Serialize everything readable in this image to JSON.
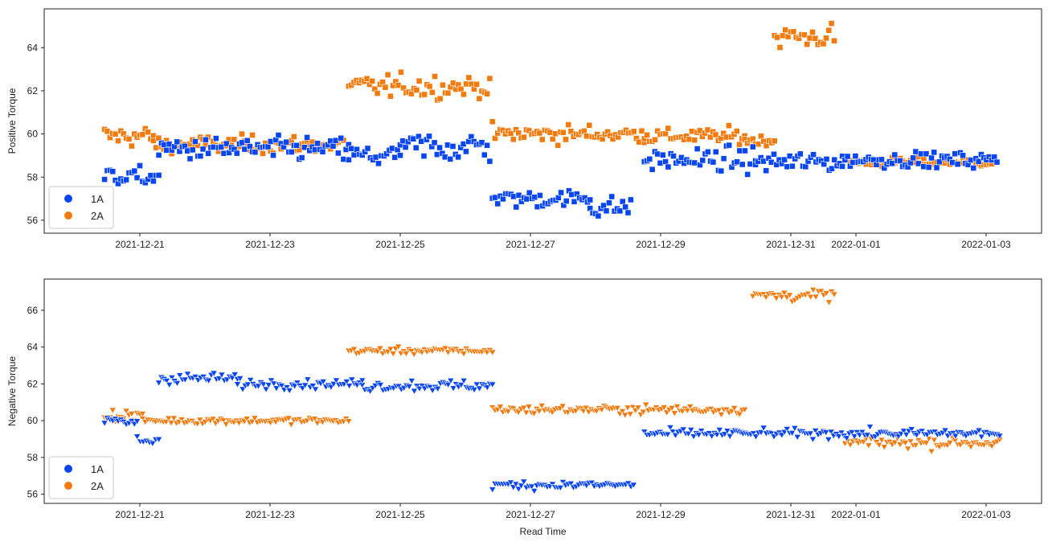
{
  "colors": {
    "1A": "#0a46f0",
    "2A": "#f27b0f",
    "frame": "#222222",
    "legend_border": "#cccccc"
  },
  "chart_data": [
    {
      "type": "scatter",
      "marker": "square",
      "xlabel": "",
      "ylabel": "Positive Torque",
      "x_type": "date",
      "xlim": [
        "2020-12-19T12:00",
        "2022-01-03T19:00"
      ],
      "x_ticks": [
        "2021-12-21",
        "2021-12-23",
        "2021-12-25",
        "2021-12-27",
        "2021-12-29",
        "2021-12-31",
        "2022-01-01",
        "2022-01-03"
      ],
      "ylim": [
        55.4,
        65.8
      ],
      "y_ticks": [
        56,
        58,
        60,
        62,
        64
      ],
      "legend": {
        "placement": "lower-left",
        "entries": [
          "1A",
          "2A"
        ]
      },
      "segments": {
        "1A": [
          {
            "start": "2021-12-20T11:00",
            "end": "2021-12-21T07:00",
            "base": 58.0,
            "noise": 0.35
          },
          {
            "start": "2021-12-21T07:00",
            "end": "2021-12-24T05:00",
            "base": 59.3,
            "noise": 0.45
          },
          {
            "start": "2021-12-24T05:00",
            "end": "2021-12-25T00:00",
            "base": 59.0,
            "noise": 0.45
          },
          {
            "start": "2021-12-25T00:00",
            "end": "2021-12-26T09:00",
            "base": 59.4,
            "noise": 0.6
          },
          {
            "start": "2021-12-26T10:00",
            "end": "2021-12-27T22:00",
            "base": 57.0,
            "noise": 0.35
          },
          {
            "start": "2021-12-27T22:00",
            "end": "2021-12-28T13:00",
            "base": 56.6,
            "noise": 0.4
          },
          {
            "start": "2021-12-28T18:00",
            "end": "2021-12-30T11:00",
            "base": 58.8,
            "noise": 0.45
          },
          {
            "start": "2021-12-30T11:00",
            "end": "2021-12-31T19:00",
            "base": 58.7,
            "noise": 0.4
          },
          {
            "start": "2021-12-31T19:00",
            "end": "2022-01-03T04:00",
            "base": 58.8,
            "noise": 0.3
          }
        ],
        "2A": [
          {
            "start": "2021-12-20T11:00",
            "end": "2021-12-21T05:00",
            "base": 59.9,
            "noise": 0.4
          },
          {
            "start": "2021-12-21T05:00",
            "end": "2021-12-24T05:00",
            "base": 59.5,
            "noise": 0.35
          },
          {
            "start": "2021-12-24T05:00",
            "end": "2021-12-26T09:00",
            "base": 62.2,
            "noise": 0.45
          },
          {
            "start": "2021-12-26T10:00",
            "end": "2021-12-28T18:00",
            "base": 60.0,
            "noise": 0.35
          },
          {
            "start": "2021-12-28T18:00",
            "end": "2021-12-30T07:00",
            "base": 59.9,
            "noise": 0.3
          },
          {
            "start": "2021-12-30T07:00",
            "end": "2021-12-30T18:00",
            "base": 59.7,
            "noise": 0.2
          },
          {
            "start": "2021-12-30T18:00",
            "end": "2021-12-31T16:00",
            "base": 64.5,
            "noise": 0.5
          },
          {
            "start": "2021-12-31T22:00",
            "end": "2022-01-03T04:00",
            "base": 58.7,
            "noise": 0.18
          }
        ]
      }
    },
    {
      "type": "scatter",
      "marker": "triangle-down",
      "xlabel": "Read Time",
      "ylabel": "Negative Torque",
      "x_type": "date",
      "xlim": [
        "2020-12-19T12:00",
        "2022-01-03T19:00"
      ],
      "x_ticks": [
        "2021-12-21",
        "2021-12-23",
        "2021-12-25",
        "2021-12-27",
        "2021-12-29",
        "2021-12-31",
        "2022-01-01",
        "2022-01-03"
      ],
      "ylim": [
        55.5,
        67.7
      ],
      "y_ticks": [
        56,
        58,
        60,
        62,
        64,
        66
      ],
      "legend": {
        "placement": "lower-left",
        "entries": [
          "1A",
          "2A"
        ]
      },
      "segments": {
        "1A": [
          {
            "start": "2021-12-20T11:00",
            "end": "2021-12-20T23:00",
            "base": 59.9,
            "noise": 0.3
          },
          {
            "start": "2021-12-20T23:00",
            "end": "2021-12-21T07:00",
            "base": 58.9,
            "noise": 0.25
          },
          {
            "start": "2021-12-21T07:00",
            "end": "2021-12-22T12:00",
            "base": 62.3,
            "noise": 0.25
          },
          {
            "start": "2021-12-22T12:00",
            "end": "2021-12-24T10:00",
            "base": 62.0,
            "noise": 0.22
          },
          {
            "start": "2021-12-24T10:00",
            "end": "2021-12-26T10:00",
            "base": 61.9,
            "noise": 0.25
          },
          {
            "start": "2021-12-26T10:00",
            "end": "2021-12-28T14:00",
            "base": 56.5,
            "noise": 0.2
          },
          {
            "start": "2021-12-28T18:00",
            "end": "2022-01-03T05:00",
            "base": 59.3,
            "noise": 0.2
          }
        ],
        "2A": [
          {
            "start": "2021-12-20T11:00",
            "end": "2021-12-21T01:00",
            "base": 60.3,
            "noise": 0.25
          },
          {
            "start": "2021-12-21T01:00",
            "end": "2021-12-24T05:00",
            "base": 60.0,
            "noise": 0.15
          },
          {
            "start": "2021-12-24T05:00",
            "end": "2021-12-26T10:00",
            "base": 63.8,
            "noise": 0.15
          },
          {
            "start": "2021-12-26T10:00",
            "end": "2021-12-30T07:00",
            "base": 60.6,
            "noise": 0.2
          },
          {
            "start": "2021-12-30T10:00",
            "end": "2021-12-31T16:00",
            "base": 66.8,
            "noise": 0.25
          },
          {
            "start": "2021-12-31T20:00",
            "end": "2022-01-03T05:00",
            "base": 58.8,
            "noise": 0.25
          }
        ]
      }
    }
  ]
}
